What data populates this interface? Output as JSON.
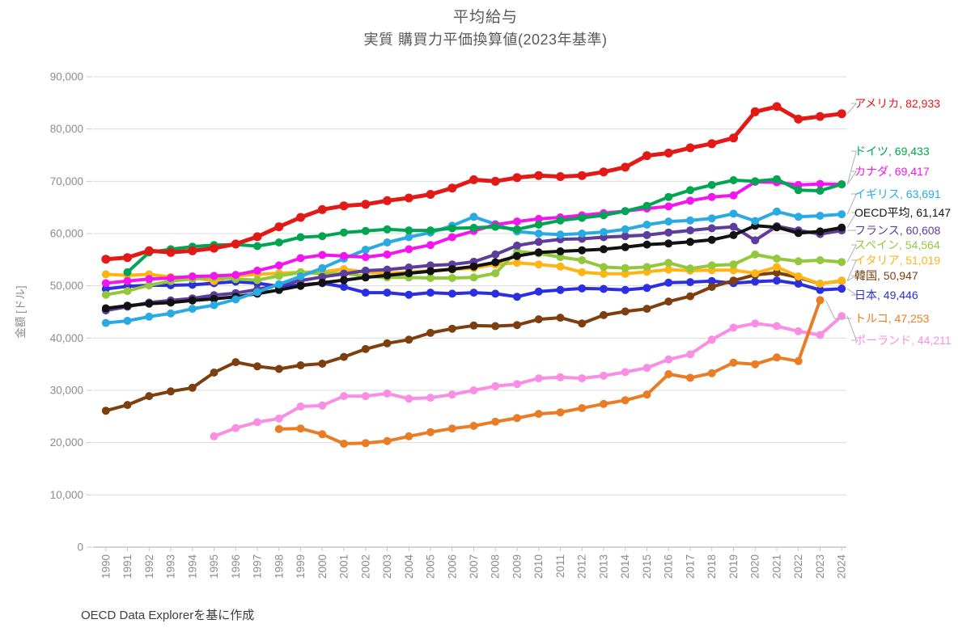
{
  "header": {
    "title": "平均給与",
    "subtitle": "実質 購買力平価換算値(2023年基準)"
  },
  "footer": {
    "source": "OECD Data Explorerを基に作成"
  },
  "chart_data": {
    "type": "line",
    "title": "平均給与",
    "subtitle": "実質 購買力平価換算値(2023年基準)",
    "ylabel": "金額 [ドル]",
    "source": "OECD Data Explorerを基に作成",
    "ylim": [
      0,
      90000
    ],
    "ytick_step": 10000,
    "grid": true,
    "legend_position": "right-end-labels",
    "ytick_labels": [
      "0",
      "10,000",
      "20,000",
      "30,000",
      "40,000",
      "50,000",
      "60,000",
      "70,000",
      "80,000",
      "90,000"
    ],
    "x_labels": [
      "1990",
      "1991",
      "1992",
      "1993",
      "1994",
      "1995",
      "1996",
      "1997",
      "1998",
      "1999",
      "2000",
      "2001",
      "2002",
      "2003",
      "2004",
      "2005",
      "2006",
      "2007",
      "2008",
      "2009",
      "2010",
      "2011",
      "2012",
      "2013",
      "2014",
      "2015",
      "2016",
      "2017",
      "2018",
      "2019",
      "2020",
      "2021",
      "2022",
      "2023",
      "2024"
    ],
    "series": [
      {
        "id": "usa",
        "name": "アメリカ",
        "label": "アメリカ, 82,933",
        "end_value": 82933,
        "color": "#e11a18",
        "label_y": 128,
        "values": [
          55100,
          55400,
          56700,
          56400,
          56700,
          57200,
          58000,
          59400,
          61300,
          63100,
          64600,
          65300,
          65600,
          66300,
          66800,
          67500,
          68700,
          70300,
          70000,
          70700,
          71100,
          70900,
          71100,
          71800,
          72700,
          74900,
          75400,
          76400,
          77200,
          78300,
          83300,
          84300,
          81900,
          82400,
          82933
        ]
      },
      {
        "id": "germany",
        "name": "ドイツ",
        "label": "ドイツ, 69,433",
        "end_value": 69433,
        "color": "#00a551",
        "label_y": 187,
        "values": [
          null,
          52600,
          56400,
          57000,
          57500,
          57800,
          57900,
          57600,
          58300,
          59300,
          59500,
          60200,
          60500,
          60800,
          60600,
          60600,
          61000,
          61100,
          61300,
          60800,
          61700,
          62500,
          63000,
          63500,
          64300,
          65300,
          67000,
          68300,
          69300,
          70200,
          70000,
          70400,
          68300,
          68200,
          69433
        ]
      },
      {
        "id": "canada",
        "name": "カナダ",
        "label": "カナダ, 69,417",
        "end_value": 69417,
        "color": "#f216ee",
        "label_y": 212,
        "values": [
          50500,
          50900,
          51300,
          51500,
          51800,
          51900,
          52100,
          52900,
          53900,
          55300,
          55900,
          55700,
          55500,
          56000,
          57000,
          57800,
          59300,
          60500,
          61700,
          62300,
          62800,
          63100,
          63500,
          63900,
          64300,
          64800,
          65200,
          66300,
          67000,
          67300,
          69900,
          69800,
          69300,
          69500,
          69417
        ]
      },
      {
        "id": "uk",
        "name": "イギリス",
        "label": "イギリス, 63,691",
        "end_value": 63691,
        "color": "#29abe2",
        "label_y": 240,
        "values": [
          42900,
          43300,
          44100,
          44700,
          45600,
          46300,
          47400,
          48800,
          50300,
          51800,
          53400,
          55200,
          56900,
          58300,
          59300,
          60200,
          61500,
          63200,
          61800,
          60400,
          60000,
          59800,
          60000,
          60300,
          60800,
          61700,
          62300,
          62500,
          62900,
          63800,
          62400,
          64200,
          63200,
          63400,
          63691
        ]
      },
      {
        "id": "oecd-average",
        "name": "OECD平均",
        "label": "OECD平均, 61,147",
        "end_value": 61147,
        "color": "#111111",
        "label_y": 263,
        "values": [
          45700,
          46200,
          46600,
          46800,
          47200,
          47500,
          47900,
          48500,
          49200,
          50000,
          50600,
          51100,
          51600,
          52000,
          52400,
          52800,
          53200,
          53700,
          54500,
          55700,
          56400,
          56600,
          56800,
          57000,
          57400,
          57900,
          58100,
          58400,
          58800,
          59700,
          61500,
          61200,
          60100,
          60400,
          61147
        ]
      },
      {
        "id": "france",
        "name": "フランス",
        "label": "フランス, 60,608",
        "end_value": 60608,
        "color": "#5c3d99",
        "label_y": 285,
        "values": [
          45300,
          46000,
          46800,
          47200,
          47600,
          48200,
          48600,
          49300,
          50200,
          51000,
          51700,
          52300,
          52900,
          53100,
          53500,
          53900,
          54100,
          54600,
          56000,
          57700,
          58400,
          58900,
          59000,
          59300,
          59500,
          59700,
          60200,
          60600,
          61000,
          61300,
          58700,
          61400,
          60600,
          59900,
          60608
        ]
      },
      {
        "id": "spain",
        "name": "スペイン",
        "label": "スペイン, 54,564",
        "end_value": 54564,
        "color": "#93c83d",
        "label_y": 303,
        "values": [
          48300,
          49000,
          50100,
          50900,
          51300,
          51600,
          51300,
          51100,
          51900,
          52600,
          52300,
          52400,
          51800,
          51600,
          51600,
          51500,
          51500,
          51600,
          52400,
          56600,
          56200,
          55500,
          54900,
          53600,
          53400,
          53600,
          54400,
          53300,
          53900,
          54100,
          56000,
          55200,
          54700,
          54900,
          54564
        ]
      },
      {
        "id": "italy",
        "name": "イタリア",
        "label": "イタリア, 51,019",
        "end_value": 51019,
        "color": "#fdb515",
        "label_y": 322,
        "values": [
          52200,
          52000,
          52200,
          51700,
          51600,
          50900,
          51900,
          52200,
          52400,
          52600,
          52700,
          53200,
          52600,
          52400,
          52600,
          52900,
          53100,
          53400,
          54100,
          54400,
          54100,
          53700,
          52600,
          52300,
          52300,
          52700,
          53100,
          52900,
          53000,
          53000,
          52400,
          53600,
          51800,
          50400,
          51019
        ]
      },
      {
        "id": "korea",
        "name": "韓国",
        "label": "韓国, 50,947",
        "end_value": 50947,
        "color": "#7d3f10",
        "label_y": 341,
        "values": [
          26100,
          27200,
          28900,
          29800,
          30500,
          33400,
          35400,
          34600,
          34100,
          34800,
          35100,
          36400,
          37900,
          39000,
          39700,
          41000,
          41800,
          42400,
          42300,
          42500,
          43600,
          43900,
          42800,
          44400,
          45100,
          45600,
          47000,
          48000,
          49800,
          51000,
          52100,
          52500,
          51600,
          50400,
          50947
        ]
      },
      {
        "id": "japan",
        "name": "日本",
        "label": "日本, 49,446",
        "end_value": 49446,
        "color": "#2c2fe0",
        "label_y": 365,
        "values": [
          49400,
          49900,
          50100,
          50100,
          50200,
          50500,
          50800,
          50500,
          49900,
          50200,
          50500,
          49800,
          48700,
          48700,
          48300,
          48700,
          48500,
          48700,
          48500,
          47900,
          48900,
          49200,
          49500,
          49400,
          49200,
          49600,
          50600,
          50700,
          50900,
          50500,
          50800,
          51000,
          50400,
          49200,
          49446
        ]
      },
      {
        "id": "turkey",
        "name": "トルコ",
        "label": "トルコ, 47,253",
        "end_value": 47253,
        "color": "#e87d25",
        "label_y": 394,
        "values": [
          null,
          null,
          null,
          null,
          null,
          null,
          null,
          null,
          22600,
          22700,
          21600,
          19800,
          19900,
          20300,
          21200,
          22000,
          22700,
          23200,
          24000,
          24700,
          25500,
          25800,
          26600,
          27400,
          28100,
          29200,
          33100,
          32400,
          33300,
          35300,
          35000,
          36300,
          35600,
          47253,
          null
        ]
      },
      {
        "id": "poland",
        "name": "ポーランド",
        "label": "ポーランド, 44,211",
        "end_value": 44211,
        "color": "#f98ee4",
        "label_y": 421,
        "values": [
          null,
          null,
          null,
          null,
          null,
          21200,
          22800,
          23900,
          24600,
          26900,
          27100,
          28900,
          28900,
          29400,
          28400,
          28600,
          29200,
          30000,
          30800,
          31200,
          32300,
          32500,
          32300,
          32800,
          33500,
          34300,
          35900,
          36900,
          39700,
          42000,
          42800,
          42300,
          41300,
          40600,
          44211
        ]
      }
    ]
  }
}
